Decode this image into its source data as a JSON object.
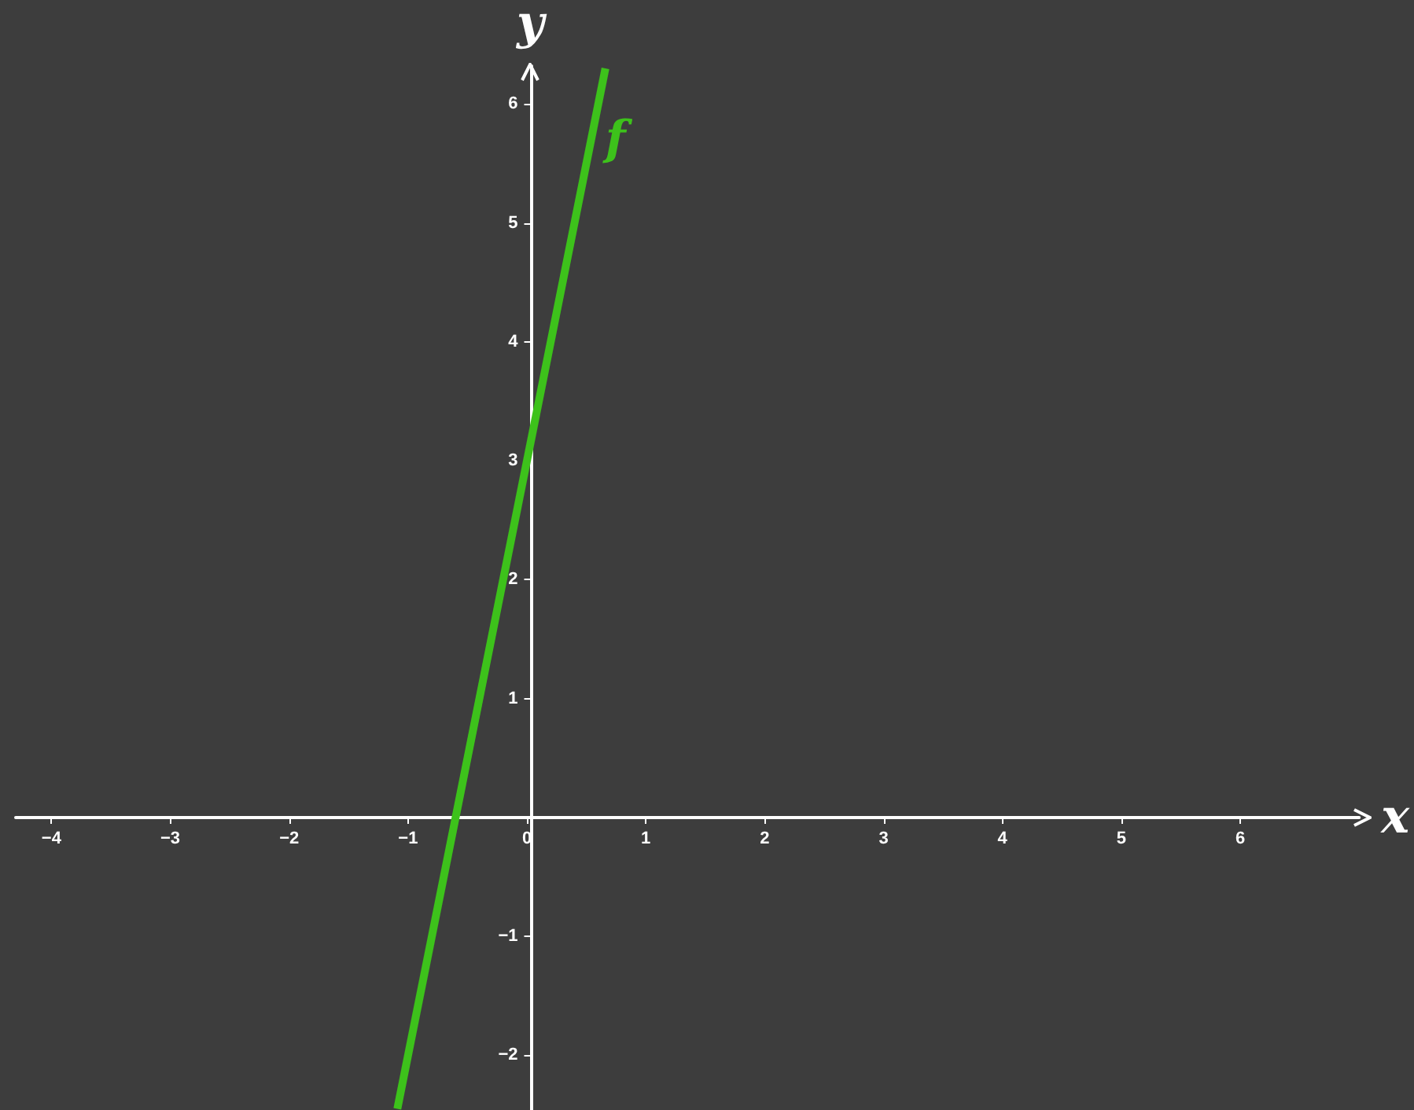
{
  "chart_data": {
    "type": "line",
    "xlabel": "x",
    "ylabel": "y",
    "xlim": [
      -4.3,
      7
    ],
    "ylim": [
      -2.46,
      6.32
    ],
    "xticks": [
      -4,
      -3,
      -2,
      -1,
      0,
      1,
      2,
      3,
      4,
      5,
      6
    ],
    "yticks": [
      -2,
      -1,
      1,
      2,
      3,
      4,
      5,
      6
    ],
    "series": [
      {
        "name": "f",
        "color": "#3dc21b",
        "x": [
          -1.09,
          0.66
        ],
        "values": [
          -2.45,
          6.3
        ]
      }
    ],
    "grid": false,
    "legend": false,
    "marker": "none",
    "line_style": "solid"
  }
}
